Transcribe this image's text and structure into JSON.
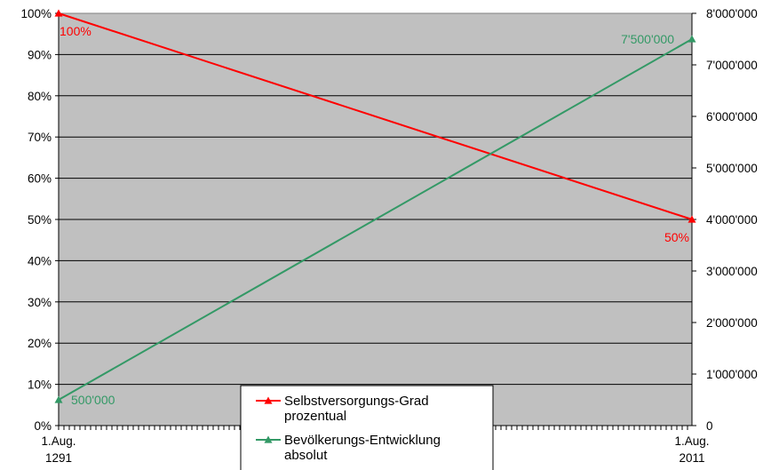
{
  "chart_data": {
    "type": "line",
    "x": [
      "1.Aug. 1291",
      "1.Aug. 2011"
    ],
    "x_tick_labels": [
      {
        "line1": "1.Aug.",
        "line2": "1291"
      },
      {
        "line1": "1.Aug.",
        "line2": "2011"
      }
    ],
    "series": [
      {
        "name": "Selbstversorgungs-Grad prozentual",
        "name_lines": [
          "Selbstversorgungs-Grad",
          "prozentual"
        ],
        "axis": "left",
        "color": "#ff0000",
        "values": [
          1.0,
          0.5
        ],
        "data_labels": [
          "100%",
          "50%"
        ]
      },
      {
        "name": "Bevölkerungs-Entwicklung absolut",
        "name_lines": [
          "Bevölkerungs-Entwicklung",
          "absolut"
        ],
        "axis": "right",
        "color": "#339966",
        "values": [
          500000,
          7500000
        ],
        "data_labels": [
          "500'000",
          "7'500'000"
        ]
      }
    ],
    "y_left": {
      "ylim": [
        0,
        1
      ],
      "ticks": [
        0,
        0.1,
        0.2,
        0.3,
        0.4,
        0.5,
        0.6,
        0.7,
        0.8,
        0.9,
        1.0
      ],
      "tick_labels": [
        "0%",
        "10%",
        "20%",
        "30%",
        "40%",
        "50%",
        "60%",
        "70%",
        "80%",
        "90%",
        "100%"
      ]
    },
    "y_right": {
      "ylim": [
        0,
        8000000
      ],
      "ticks": [
        0,
        1000000,
        2000000,
        3000000,
        4000000,
        5000000,
        6000000,
        7000000,
        8000000
      ],
      "tick_labels": [
        "0",
        "1'000'000",
        "2'000'000",
        "3'000'000",
        "4'000'000",
        "5'000'000",
        "6'000'000",
        "7'000'000",
        "8'000'000"
      ]
    },
    "grid": true,
    "plot_background": "#c0c0c0",
    "legend_position": "bottom-center"
  }
}
